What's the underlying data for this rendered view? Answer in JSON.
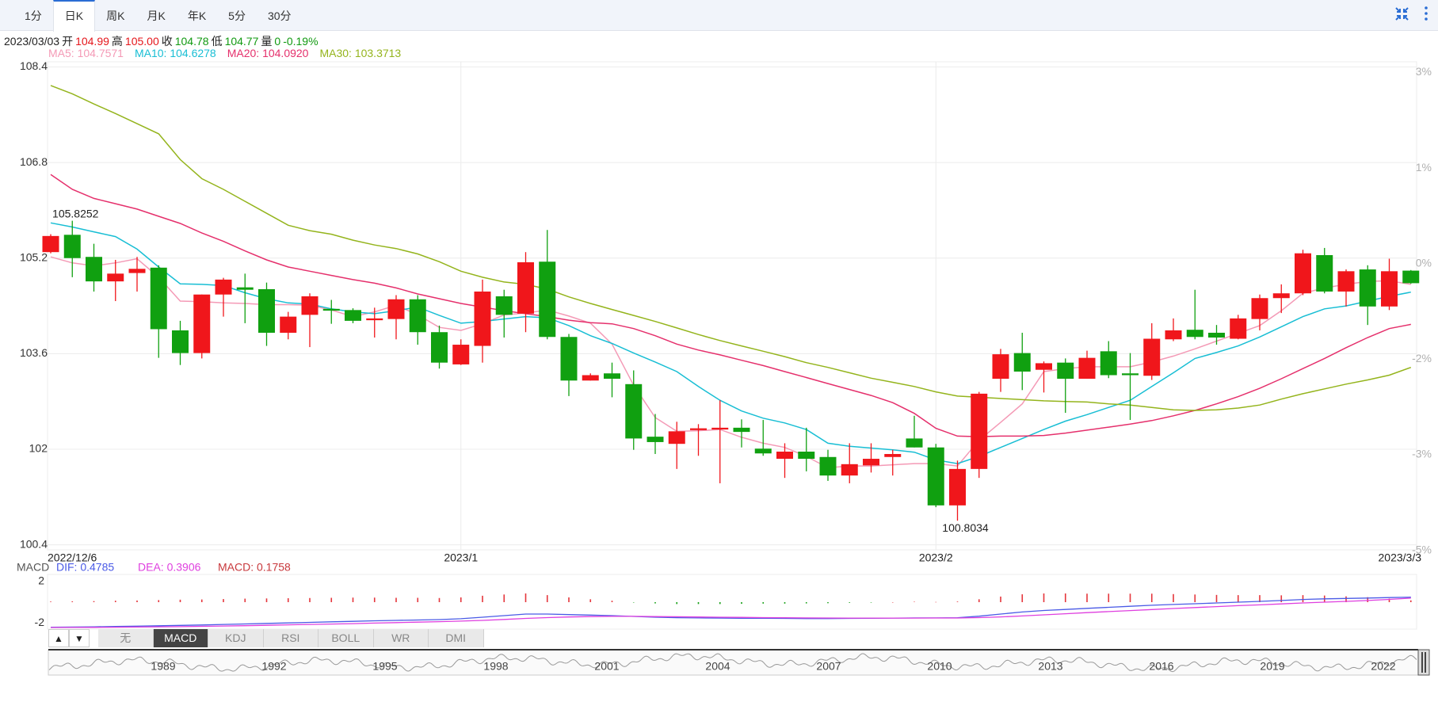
{
  "tabs": {
    "items": [
      "1分",
      "日K",
      "周K",
      "月K",
      "年K",
      "5分",
      "30分"
    ],
    "active": 1
  },
  "quote": {
    "date": "2023/03/03",
    "open_label": "开",
    "open": "104.99",
    "high_label": "高",
    "high": "105.00",
    "close_label": "收",
    "close": "104.78",
    "low_label": "低",
    "low": "104.77",
    "volume_label": "量",
    "volume": "0",
    "change": "-0.19%"
  },
  "chart_data": [
    {
      "type": "candlestick",
      "up_color": "#f0161b",
      "down_color": "#10a010",
      "grid": true,
      "categories": [
        "2022/12/6",
        null,
        null,
        null,
        null,
        null,
        null,
        null,
        null,
        null,
        null,
        null,
        null,
        null,
        null,
        null,
        null,
        null,
        null,
        "2023/1",
        null,
        null,
        null,
        null,
        null,
        null,
        null,
        null,
        null,
        null,
        null,
        null,
        null,
        null,
        null,
        null,
        null,
        null,
        null,
        null,
        null,
        "2023/2",
        null,
        null,
        null,
        null,
        null,
        null,
        null,
        null,
        null,
        null,
        null,
        null,
        null,
        null,
        null,
        null,
        null,
        null,
        null,
        null,
        null,
        "2023/3/3"
      ],
      "open": [
        105.3,
        105.59,
        105.22,
        104.81,
        104.95,
        105.04,
        103.99,
        103.61,
        104.59,
        104.71,
        104.68,
        103.95,
        104.25,
        104.35,
        104.33,
        104.16,
        104.18,
        104.51,
        103.96,
        103.42,
        103.73,
        104.56,
        104.27,
        105.14,
        103.88,
        103.15,
        103.27,
        103.09,
        102.21,
        102.09,
        102.32,
        102.33,
        102.36,
        102.01,
        101.84,
        101.96,
        101.87,
        101.56,
        101.73,
        101.87,
        102.18,
        102.03,
        101.06,
        101.67,
        103.18,
        103.61,
        103.33,
        103.45,
        103.18,
        103.64,
        103.27,
        103.23,
        103.84,
        104.0,
        103.95,
        103.85,
        104.18,
        104.53,
        104.61,
        105.25,
        104.64,
        105.01,
        104.39,
        104.99
      ],
      "high": [
        105.6,
        105.8252,
        105.44,
        105.17,
        105.22,
        105.08,
        104.15,
        104.59,
        104.87,
        104.94,
        104.79,
        104.3,
        104.61,
        104.5,
        104.36,
        104.37,
        104.58,
        104.58,
        104.07,
        103.84,
        104.84,
        104.67,
        105.3,
        105.67,
        103.93,
        103.27,
        103.45,
        103.32,
        102.59,
        102.46,
        102.42,
        102.82,
        102.5,
        102.49,
        102.1,
        102.36,
        101.99,
        102.1,
        102.1,
        101.99,
        102.56,
        102.09,
        101.81,
        102.96,
        103.68,
        103.95,
        103.47,
        103.52,
        103.65,
        103.81,
        103.61,
        104.11,
        104.19,
        104.67,
        104.08,
        104.25,
        104.59,
        104.76,
        105.34,
        105.37,
        105.01,
        105.08,
        105.19,
        105.0
      ],
      "low": [
        105.28,
        104.88,
        104.64,
        104.48,
        104.64,
        103.53,
        103.41,
        103.52,
        104.22,
        104.11,
        103.73,
        103.84,
        103.71,
        104.1,
        104.11,
        103.87,
        103.84,
        103.75,
        103.35,
        103.41,
        103.45,
        103.87,
        103.96,
        103.84,
        102.89,
        103.15,
        102.87,
        101.99,
        101.92,
        101.67,
        101.89,
        101.43,
        102.03,
        101.89,
        101.52,
        101.63,
        101.47,
        101.43,
        101.61,
        101.56,
        102.03,
        101.03,
        100.8034,
        101.52,
        102.96,
        102.99,
        102.95,
        102.61,
        103.18,
        103.19,
        102.49,
        103.16,
        103.81,
        103.84,
        103.75,
        103.84,
        103.99,
        104.28,
        104.58,
        104.61,
        104.39,
        104.08,
        104.33,
        104.77
      ],
      "close": [
        105.57,
        105.2,
        104.81,
        104.94,
        105.02,
        104.01,
        103.61,
        104.59,
        104.84,
        104.67,
        103.95,
        104.22,
        104.56,
        104.32,
        104.15,
        104.19,
        104.51,
        103.96,
        103.45,
        103.75,
        104.64,
        104.25,
        105.13,
        103.88,
        103.15,
        103.24,
        103.18,
        102.18,
        102.12,
        102.3,
        102.35,
        102.36,
        102.29,
        101.93,
        101.96,
        101.84,
        101.56,
        101.75,
        101.84,
        101.92,
        102.03,
        101.06,
        101.67,
        102.93,
        103.59,
        103.3,
        103.44,
        103.18,
        103.53,
        103.24,
        103.24,
        103.85,
        103.99,
        103.88,
        103.87,
        104.19,
        104.53,
        104.61,
        105.28,
        104.64,
        104.98,
        104.39,
        104.98,
        104.78
      ],
      "ylim": [
        100.4,
        108.4
      ],
      "yticks": [
        108.4,
        106.8,
        105.2,
        103.6,
        102,
        100.4
      ],
      "y2ticks": [
        {
          "value": 3,
          "label": "3%"
        },
        {
          "value": 1,
          "label": "1%"
        },
        {
          "value": 0,
          "label": "0%"
        },
        {
          "value": -2,
          "label": "-2%"
        },
        {
          "value": -3,
          "label": "-3%"
        },
        {
          "value": -5,
          "label": "-5%"
        }
      ],
      "series": [
        {
          "name": "MA5: 104.7571",
          "color": "#f49ab6",
          "values": [
            105.22,
            105.12,
            105.07,
            105.12,
            105.19,
            104.88,
            104.48,
            104.47,
            104.45,
            104.44,
            104.42,
            104.42,
            104.41,
            104.33,
            104.22,
            104.3,
            104.41,
            104.25,
            104.04,
            103.99,
            104.1,
            104.25,
            104.28,
            104.33,
            104.23,
            104.11,
            103.76,
            103.07,
            102.53,
            102.3,
            102.31,
            102.33,
            102.2,
            102.1,
            102.03,
            101.88,
            101.69,
            101.72,
            101.72,
            101.74,
            101.76,
            101.76,
            101.72,
            102.15,
            102.45,
            102.76,
            103.3,
            103.35,
            103.38,
            103.38,
            103.38,
            103.46,
            103.56,
            103.68,
            103.81,
            103.94,
            104.07,
            104.32,
            104.61,
            104.7,
            104.76,
            104.81,
            104.82,
            104.76
          ]
        },
        {
          "name": "MA10: 104.6278",
          "color": "#18bed4",
          "values": [
            105.79,
            105.72,
            105.64,
            105.56,
            105.35,
            105.05,
            104.77,
            104.76,
            104.74,
            104.62,
            104.52,
            104.45,
            104.43,
            104.35,
            104.3,
            104.27,
            104.32,
            104.38,
            104.24,
            104.11,
            104.14,
            104.18,
            104.22,
            104.2,
            104.07,
            103.9,
            103.77,
            103.61,
            103.46,
            103.3,
            103.05,
            102.82,
            102.64,
            102.52,
            102.44,
            102.33,
            102.1,
            102.05,
            102.02,
            101.99,
            101.95,
            101.82,
            101.76,
            101.88,
            102.03,
            102.18,
            102.33,
            102.47,
            102.58,
            102.7,
            102.82,
            103.05,
            103.28,
            103.52,
            103.62,
            103.73,
            103.88,
            104.05,
            104.22,
            104.35,
            104.4,
            104.48,
            104.56,
            104.63
          ]
        },
        {
          "name": "MA20: 104.0920",
          "color": "#e5306c",
          "values": [
            106.6,
            106.35,
            106.2,
            106.11,
            106.02,
            105.9,
            105.78,
            105.62,
            105.48,
            105.32,
            105.17,
            105.05,
            104.98,
            104.91,
            104.84,
            104.78,
            104.7,
            104.6,
            104.52,
            104.44,
            104.38,
            104.32,
            104.27,
            104.22,
            104.16,
            104.12,
            104.1,
            104.02,
            103.9,
            103.76,
            103.66,
            103.58,
            103.49,
            103.4,
            103.3,
            103.2,
            103.1,
            103.0,
            102.9,
            102.78,
            102.6,
            102.35,
            102.22,
            102.21,
            102.22,
            102.22,
            102.23,
            102.27,
            102.32,
            102.37,
            102.42,
            102.48,
            102.56,
            102.65,
            102.76,
            102.88,
            103.02,
            103.18,
            103.35,
            103.52,
            103.7,
            103.87,
            104.02,
            104.09
          ]
        },
        {
          "name": "MA30: 103.3713",
          "color": "#94b41c",
          "values": [
            108.09,
            107.95,
            107.78,
            107.62,
            107.45,
            107.28,
            106.85,
            106.53,
            106.35,
            106.15,
            105.95,
            105.75,
            105.66,
            105.6,
            105.5,
            105.42,
            105.36,
            105.27,
            105.14,
            104.98,
            104.88,
            104.8,
            104.76,
            104.68,
            104.55,
            104.44,
            104.34,
            104.24,
            104.14,
            104.03,
            103.92,
            103.82,
            103.73,
            103.64,
            103.55,
            103.45,
            103.37,
            103.28,
            103.19,
            103.12,
            103.05,
            102.96,
            102.89,
            102.87,
            102.85,
            102.83,
            102.81,
            102.8,
            102.79,
            102.76,
            102.74,
            102.7,
            102.66,
            102.65,
            102.66,
            102.69,
            102.74,
            102.84,
            102.93,
            103.01,
            103.09,
            103.16,
            103.24,
            103.37
          ]
        }
      ]
    },
    {
      "type": "macd",
      "title": "MACD",
      "up_color": "#e5363c",
      "down_color": "#15a015",
      "ylim": [
        -2.6,
        2.6
      ],
      "yticks": [
        2,
        -2
      ],
      "series": [
        {
          "name": "DIF: 0.4785",
          "color": "#4a5ae6",
          "values": [
            -2.42,
            -2.4,
            -2.38,
            -2.35,
            -2.32,
            -2.28,
            -2.24,
            -2.2,
            -2.15,
            -2.1,
            -2.05,
            -2.0,
            -1.95,
            -1.9,
            -1.85,
            -1.8,
            -1.76,
            -1.72,
            -1.68,
            -1.6,
            -1.45,
            -1.3,
            -1.15,
            -1.15,
            -1.2,
            -1.25,
            -1.3,
            -1.38,
            -1.45,
            -1.5,
            -1.52,
            -1.54,
            -1.55,
            -1.56,
            -1.57,
            -1.58,
            -1.58,
            -1.57,
            -1.56,
            -1.54,
            -1.52,
            -1.52,
            -1.5,
            -1.35,
            -1.15,
            -0.95,
            -0.8,
            -0.7,
            -0.6,
            -0.5,
            -0.4,
            -0.3,
            -0.22,
            -0.15,
            -0.08,
            0.0,
            0.08,
            0.16,
            0.26,
            0.32,
            0.36,
            0.4,
            0.44,
            0.4785
          ]
        },
        {
          "name": "DEA: 0.3906",
          "color": "#df3fdf",
          "values": [
            -2.45,
            -2.44,
            -2.43,
            -2.42,
            -2.4,
            -2.38,
            -2.36,
            -2.33,
            -2.3,
            -2.27,
            -2.23,
            -2.19,
            -2.15,
            -2.11,
            -2.07,
            -2.02,
            -1.97,
            -1.93,
            -1.88,
            -1.83,
            -1.76,
            -1.67,
            -1.57,
            -1.49,
            -1.43,
            -1.39,
            -1.37,
            -1.37,
            -1.39,
            -1.41,
            -1.43,
            -1.45,
            -1.47,
            -1.49,
            -1.5,
            -1.52,
            -1.53,
            -1.54,
            -1.54,
            -1.54,
            -1.54,
            -1.53,
            -1.53,
            -1.49,
            -1.42,
            -1.33,
            -1.22,
            -1.12,
            -1.01,
            -0.91,
            -0.81,
            -0.71,
            -0.61,
            -0.52,
            -0.43,
            -0.34,
            -0.26,
            -0.17,
            -0.08,
            0.0,
            0.08,
            0.16,
            0.27,
            0.3906
          ]
        },
        {
          "name": "MACD: 0.1758",
          "color": "#c8383c",
          "values": [
            0.06,
            0.08,
            0.1,
            0.14,
            0.16,
            0.2,
            0.24,
            0.26,
            0.3,
            0.34,
            0.36,
            0.38,
            0.4,
            0.42,
            0.44,
            0.44,
            0.42,
            0.42,
            0.4,
            0.46,
            0.62,
            0.74,
            0.84,
            0.68,
            0.46,
            0.28,
            0.14,
            -0.02,
            -0.12,
            -0.18,
            -0.18,
            -0.18,
            -0.16,
            -0.14,
            -0.14,
            -0.12,
            -0.1,
            -0.06,
            -0.04,
            0.0,
            0.04,
            0.02,
            0.06,
            0.28,
            0.54,
            0.76,
            0.84,
            0.84,
            0.82,
            0.82,
            0.82,
            0.82,
            0.78,
            0.74,
            0.7,
            0.68,
            0.68,
            0.66,
            0.68,
            0.64,
            0.56,
            0.48,
            0.34,
            0.1758
          ]
        }
      ]
    }
  ],
  "indicators": {
    "buttons": [
      "▲",
      "▼"
    ],
    "items": [
      "无",
      "MACD",
      "KDJ",
      "RSI",
      "BOLL",
      "WR",
      "DMI"
    ],
    "active": 1
  },
  "navigator": {
    "years": [
      "1989",
      "1992",
      "1995",
      "1998",
      "2001",
      "2004",
      "2007",
      "2010",
      "2013",
      "2016",
      "2019",
      "2022"
    ]
  }
}
